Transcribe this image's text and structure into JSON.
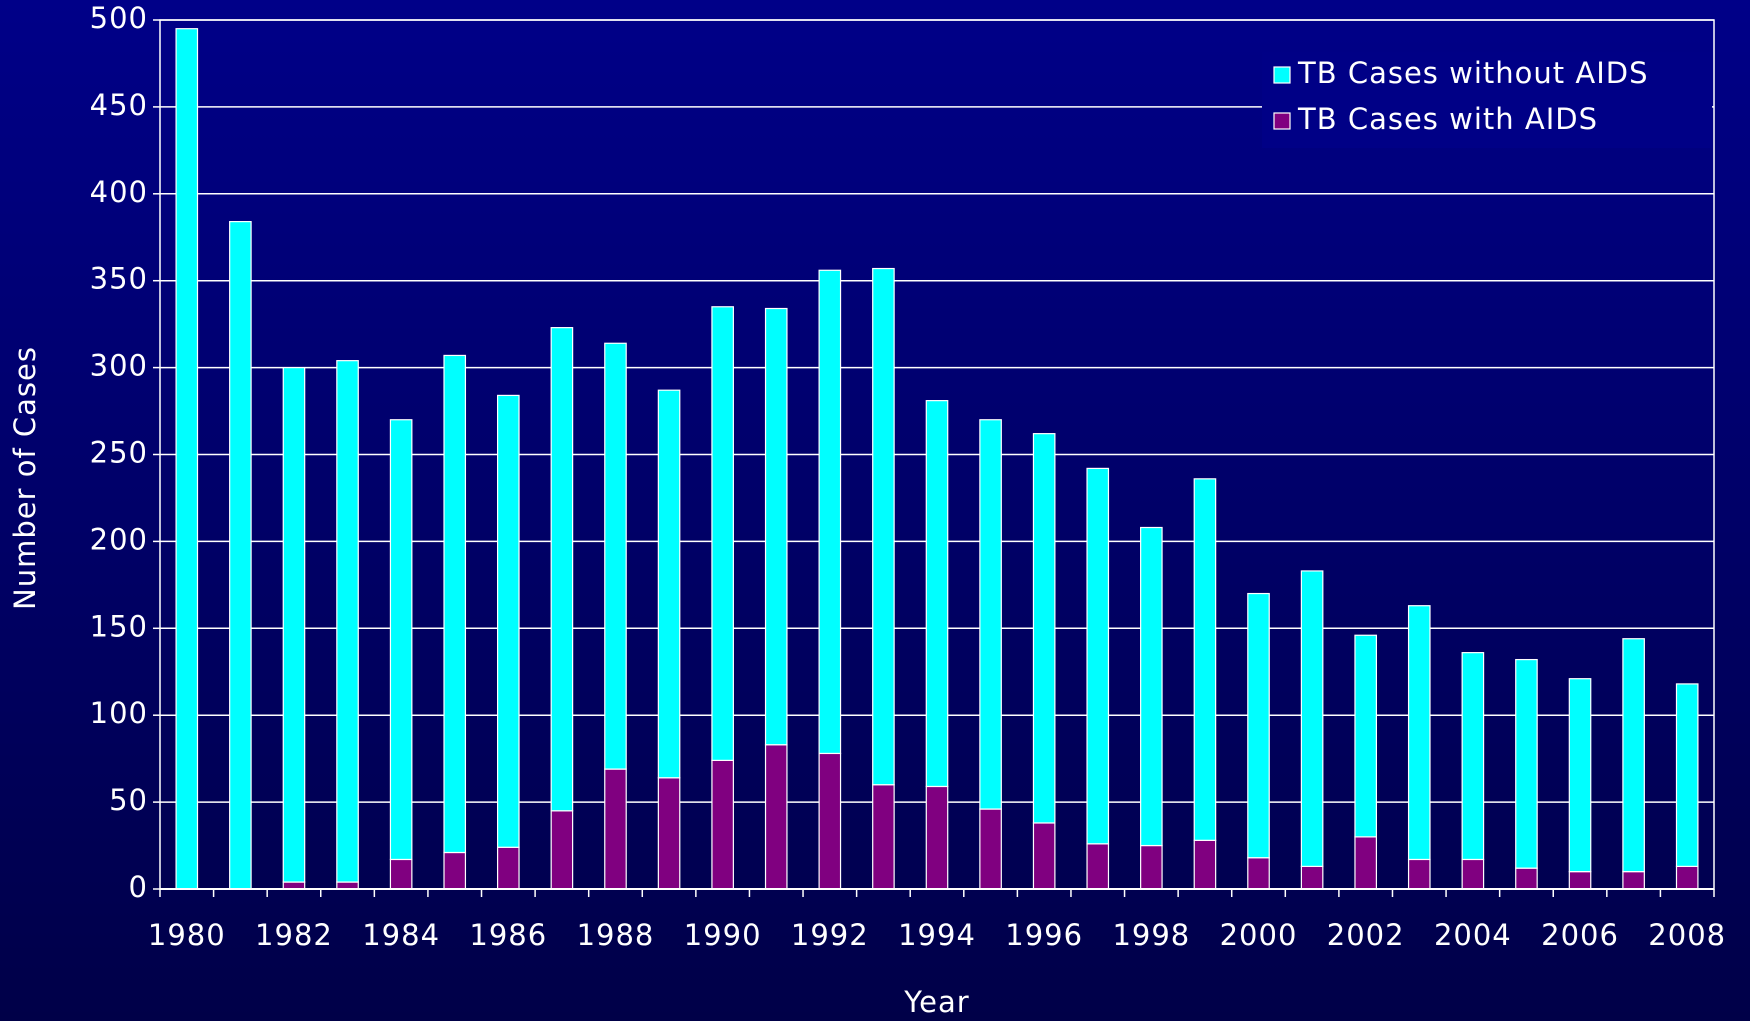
{
  "chart_data": {
    "type": "stacked_bar",
    "x_label": "Year",
    "y_label": "Number of Cases",
    "categories": [
      "1980",
      null,
      "1982",
      null,
      "1984",
      null,
      "1986",
      null,
      "1988",
      null,
      "1990",
      null,
      "1992",
      null,
      "1994",
      null,
      "1996",
      null,
      "1998",
      null,
      "2000",
      null,
      "2002",
      null,
      "2004",
      null,
      "2006",
      null,
      "2008"
    ],
    "series": [
      {
        "name": "TB Cases without AIDS",
        "color": "#00ffff",
        "values": [
          495,
          384,
          296,
          300,
          253,
          286,
          260,
          278,
          245,
          223,
          261,
          251,
          278,
          297,
          222,
          224,
          224,
          216,
          183,
          208,
          152,
          170,
          116,
          146,
          119,
          120,
          111,
          134,
          105
        ]
      },
      {
        "name": "TB Cases with AIDS",
        "color": "#800080",
        "values": [
          0,
          0,
          4,
          4,
          17,
          21,
          24,
          45,
          69,
          64,
          74,
          83,
          78,
          60,
          59,
          46,
          38,
          26,
          25,
          28,
          18,
          13,
          30,
          17,
          17,
          12,
          10,
          10,
          13
        ]
      }
    ],
    "ylim": [
      0,
      500
    ],
    "yticks": [
      0,
      50,
      100,
      150,
      200,
      250,
      300,
      350,
      400,
      450,
      500
    ],
    "grid": true,
    "legend": "upper right"
  }
}
